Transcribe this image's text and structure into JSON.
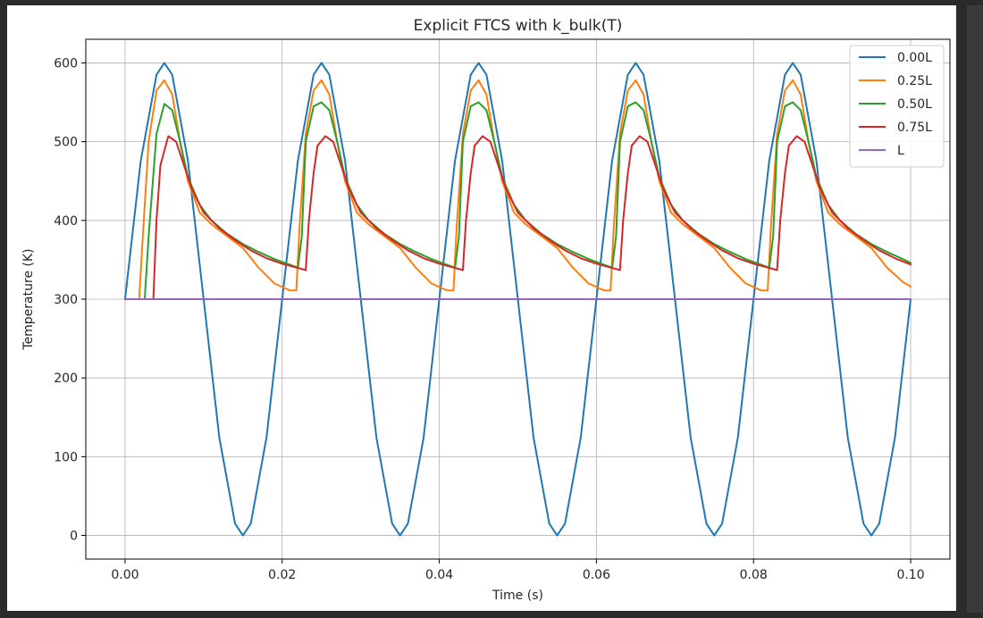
{
  "chart_data": {
    "type": "line",
    "title": "Explicit FTCS with k_bulk(T)",
    "xlabel": "Time (s)",
    "ylabel": "Temperature (K)",
    "xlim": [
      -0.005,
      0.105
    ],
    "ylim": [
      -30,
      630
    ],
    "xticks": [
      0.0,
      0.02,
      0.04,
      0.06,
      0.08,
      0.1
    ],
    "xtick_labels": [
      "0.00",
      "0.02",
      "0.04",
      "0.06",
      "0.08",
      "0.10"
    ],
    "yticks": [
      0,
      100,
      200,
      300,
      400,
      500,
      600
    ],
    "ytick_labels": [
      "0",
      "100",
      "200",
      "300",
      "400",
      "500",
      "600"
    ],
    "grid": true,
    "legend_position": "top-right",
    "colors": {
      "s0": "#1f77b4",
      "s1": "#ff7f0e",
      "s2": "#2ca02c",
      "s3": "#d62728",
      "s4": "#9467bd"
    },
    "series": [
      {
        "name": "0.00L",
        "x": [
          0.0,
          0.002,
          0.004,
          0.005,
          0.006,
          0.008,
          0.01,
          0.012,
          0.014,
          0.015,
          0.016,
          0.018,
          0.02,
          0.022,
          0.024,
          0.025,
          0.026,
          0.028,
          0.03,
          0.032,
          0.034,
          0.035,
          0.036,
          0.038,
          0.04,
          0.042,
          0.044,
          0.045,
          0.046,
          0.048,
          0.05,
          0.052,
          0.054,
          0.055,
          0.056,
          0.058,
          0.06,
          0.062,
          0.064,
          0.065,
          0.066,
          0.068,
          0.07,
          0.072,
          0.074,
          0.075,
          0.076,
          0.078,
          0.08,
          0.082,
          0.084,
          0.085,
          0.086,
          0.088,
          0.09,
          0.092,
          0.094,
          0.095,
          0.096,
          0.098,
          0.1
        ],
        "y": [
          300,
          476,
          585,
          600,
          585,
          476,
          300,
          124,
          15,
          0,
          15,
          124,
          300,
          476,
          585,
          600,
          585,
          476,
          300,
          124,
          15,
          0,
          15,
          124,
          300,
          476,
          585,
          600,
          585,
          476,
          300,
          124,
          15,
          0,
          15,
          124,
          300,
          476,
          585,
          600,
          585,
          476,
          300,
          124,
          15,
          0,
          15,
          124,
          300,
          476,
          585,
          600,
          585,
          476,
          300,
          124,
          15,
          0,
          15,
          124,
          300
        ]
      },
      {
        "name": "0.25L",
        "x": [
          0.0,
          0.0018,
          0.0022,
          0.003,
          0.004,
          0.005,
          0.006,
          0.007,
          0.008,
          0.0095,
          0.011,
          0.013,
          0.015,
          0.017,
          0.019,
          0.021,
          0.0218,
          0.0222,
          0.023,
          0.024,
          0.025,
          0.026,
          0.027,
          0.028,
          0.0295,
          0.031,
          0.033,
          0.035,
          0.037,
          0.039,
          0.041,
          0.0418,
          0.0422,
          0.043,
          0.044,
          0.045,
          0.046,
          0.047,
          0.048,
          0.0495,
          0.051,
          0.053,
          0.055,
          0.057,
          0.059,
          0.061,
          0.0618,
          0.0622,
          0.063,
          0.064,
          0.065,
          0.066,
          0.067,
          0.068,
          0.0695,
          0.071,
          0.073,
          0.075,
          0.077,
          0.079,
          0.081,
          0.0818,
          0.0822,
          0.083,
          0.084,
          0.085,
          0.086,
          0.087,
          0.088,
          0.0895,
          0.091,
          0.093,
          0.095,
          0.097,
          0.099,
          0.1
        ],
        "y": [
          300,
          300,
          370,
          500,
          565,
          578,
          560,
          500,
          450,
          410,
          395,
          380,
          365,
          340,
          320,
          311,
          311,
          390,
          510,
          565,
          578,
          560,
          500,
          450,
          410,
          395,
          380,
          365,
          340,
          320,
          311,
          311,
          390,
          510,
          565,
          578,
          560,
          500,
          450,
          410,
          395,
          380,
          365,
          340,
          320,
          311,
          311,
          390,
          510,
          565,
          578,
          560,
          500,
          450,
          410,
          395,
          380,
          365,
          340,
          320,
          311,
          311,
          390,
          510,
          565,
          578,
          560,
          500,
          450,
          410,
          395,
          380,
          365,
          340,
          322,
          316
        ]
      },
      {
        "name": "0.50L",
        "x": [
          0.0,
          0.0025,
          0.003,
          0.004,
          0.005,
          0.006,
          0.007,
          0.008,
          0.0095,
          0.011,
          0.013,
          0.015,
          0.017,
          0.019,
          0.022,
          0.0225,
          0.023,
          0.024,
          0.025,
          0.026,
          0.027,
          0.028,
          0.0295,
          0.031,
          0.033,
          0.035,
          0.037,
          0.039,
          0.042,
          0.0425,
          0.043,
          0.044,
          0.045,
          0.046,
          0.047,
          0.048,
          0.0495,
          0.051,
          0.053,
          0.055,
          0.057,
          0.059,
          0.062,
          0.0625,
          0.063,
          0.064,
          0.065,
          0.066,
          0.067,
          0.068,
          0.0695,
          0.071,
          0.073,
          0.075,
          0.077,
          0.079,
          0.082,
          0.0825,
          0.083,
          0.084,
          0.085,
          0.086,
          0.087,
          0.088,
          0.0895,
          0.091,
          0.093,
          0.095,
          0.097,
          0.099,
          0.1
        ],
        "y": [
          300,
          300,
          380,
          510,
          548,
          540,
          500,
          455,
          420,
          400,
          383,
          370,
          360,
          351,
          340,
          380,
          500,
          545,
          550,
          540,
          500,
          455,
          420,
          400,
          383,
          370,
          360,
          351,
          340,
          380,
          500,
          545,
          550,
          540,
          500,
          455,
          420,
          400,
          383,
          370,
          360,
          351,
          340,
          380,
          500,
          545,
          550,
          540,
          500,
          455,
          420,
          400,
          383,
          370,
          360,
          351,
          340,
          380,
          500,
          545,
          550,
          540,
          500,
          455,
          420,
          400,
          383,
          370,
          360,
          351,
          346
        ]
      },
      {
        "name": "0.75L",
        "x": [
          0.0,
          0.0036,
          0.004,
          0.0045,
          0.0055,
          0.0065,
          0.0075,
          0.0085,
          0.01,
          0.012,
          0.014,
          0.016,
          0.018,
          0.02,
          0.023,
          0.0234,
          0.024,
          0.0245,
          0.0255,
          0.0265,
          0.0275,
          0.0285,
          0.03,
          0.032,
          0.034,
          0.036,
          0.038,
          0.04,
          0.043,
          0.0434,
          0.044,
          0.0445,
          0.0455,
          0.0465,
          0.0475,
          0.0485,
          0.05,
          0.052,
          0.054,
          0.056,
          0.058,
          0.06,
          0.063,
          0.0634,
          0.064,
          0.0645,
          0.0655,
          0.0665,
          0.0675,
          0.0685,
          0.07,
          0.072,
          0.074,
          0.076,
          0.078,
          0.08,
          0.083,
          0.0834,
          0.084,
          0.0845,
          0.0855,
          0.0865,
          0.0875,
          0.0885,
          0.09,
          0.092,
          0.094,
          0.096,
          0.098,
          0.1
        ],
        "y": [
          300,
          300,
          400,
          470,
          507,
          500,
          470,
          440,
          410,
          390,
          375,
          362,
          352,
          345,
          337,
          400,
          460,
          495,
          507,
          500,
          470,
          440,
          410,
          390,
          375,
          362,
          352,
          345,
          337,
          400,
          460,
          495,
          507,
          500,
          470,
          440,
          410,
          390,
          375,
          362,
          352,
          345,
          337,
          400,
          460,
          495,
          507,
          500,
          470,
          440,
          410,
          390,
          375,
          362,
          352,
          345,
          337,
          400,
          460,
          495,
          507,
          500,
          470,
          440,
          410,
          390,
          375,
          362,
          352,
          344
        ]
      },
      {
        "name": "L",
        "x": [
          0.0,
          0.1
        ],
        "y": [
          300,
          300
        ]
      }
    ]
  }
}
